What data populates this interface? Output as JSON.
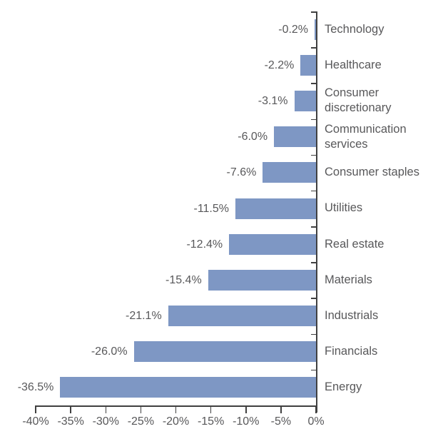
{
  "chart_data": {
    "type": "bar",
    "orientation": "horizontal",
    "title": "",
    "categories": [
      "Technology",
      "Healthcare",
      "Consumer discretionary",
      "Communication services",
      "Consumer staples",
      "Utilities",
      "Real estate",
      "Materials",
      "Industrials",
      "Financials",
      "Energy"
    ],
    "values": [
      -0.2,
      -2.2,
      -3.1,
      -6.0,
      -7.6,
      -11.5,
      -12.4,
      -15.4,
      -21.1,
      -26.0,
      -36.5
    ],
    "value_labels": [
      "-0.2%",
      "-2.2%",
      "-3.1%",
      "-6.0%",
      "-7.6%",
      "-11.5%",
      "-12.4%",
      "-15.4%",
      "-21.1%",
      "-26.0%",
      "-36.5%"
    ],
    "x_ticks": [
      "-40%",
      "-35%",
      "-30%",
      "-25%",
      "-20%",
      "-15%",
      "-10%",
      "-5%",
      "0%"
    ],
    "xlim": [
      -40,
      0
    ],
    "xlabel": "",
    "ylabel": "",
    "grid": false,
    "legend": null,
    "colors": {
      "bar": "#7E97C4",
      "axis": "#404040",
      "text": "#58585A"
    }
  }
}
